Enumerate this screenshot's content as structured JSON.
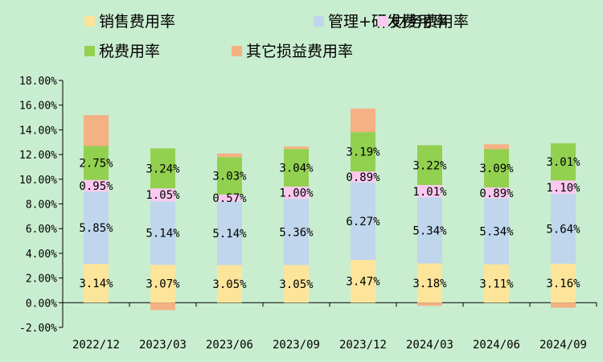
{
  "colors": {
    "background": "#C9EDCF",
    "sales": "#FCE49A",
    "mgmt_rd": "#BFD6EC",
    "finance": "#FBC9F0",
    "tax": "#92D050",
    "other": "#F4B183"
  },
  "chart_data": {
    "type": "bar",
    "stacked": true,
    "categories": [
      "2022/12",
      "2023/03",
      "2023/06",
      "2023/09",
      "2023/12",
      "2024/03",
      "2024/06",
      "2024/09"
    ],
    "ylim": [
      -0.02,
      0.18
    ],
    "yticks": [
      "-2.00%",
      "0.00%",
      "2.00%",
      "4.00%",
      "6.00%",
      "8.00%",
      "10.00%",
      "12.00%",
      "14.00%",
      "16.00%",
      "18.00%"
    ],
    "legend_position": "top",
    "series": [
      {
        "name": "销售费用率",
        "color": "#FCE49A",
        "values": [
          0.0314,
          0.0307,
          0.0305,
          0.0305,
          0.0347,
          0.0318,
          0.0311,
          0.0316
        ],
        "labels": [
          "3.14%",
          "3.07%",
          "3.05%",
          "3.05%",
          "3.47%",
          "3.18%",
          "3.11%",
          "3.16%"
        ]
      },
      {
        "name": "管理+研发费用率",
        "color": "#BFD6EC",
        "values": [
          0.0585,
          0.0514,
          0.0514,
          0.0536,
          0.0627,
          0.0534,
          0.0534,
          0.0564
        ],
        "labels": [
          "5.85%",
          "5.14%",
          "5.14%",
          "5.36%",
          "6.27%",
          "5.34%",
          "5.34%",
          "5.64%"
        ]
      },
      {
        "name": "财务费用率",
        "color": "#FBC9F0",
        "values": [
          0.0095,
          0.0105,
          0.0057,
          0.01,
          0.0089,
          0.0101,
          0.0089,
          0.011
        ],
        "labels": [
          "0.95%",
          "1.05%",
          "0.57%",
          "1.00%",
          "0.89%",
          "1.01%",
          "0.89%",
          "1.10%"
        ]
      },
      {
        "name": "税费用率",
        "color": "#92D050",
        "values": [
          0.0275,
          0.0324,
          0.0303,
          0.0304,
          0.0319,
          0.0322,
          0.0309,
          0.0301
        ],
        "labels": [
          "2.75%",
          "3.24%",
          "3.03%",
          "3.04%",
          "3.19%",
          "3.22%",
          "3.09%",
          "3.01%"
        ]
      },
      {
        "name": "其它损益费用率",
        "color": "#F4B183",
        "values": [
          0.025,
          -0.006,
          0.003,
          0.002,
          0.019,
          -0.0025,
          0.004,
          -0.004
        ]
      }
    ]
  }
}
